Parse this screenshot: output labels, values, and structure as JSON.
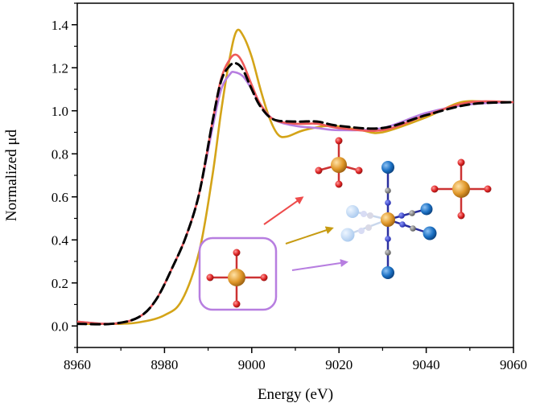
{
  "chart_data": {
    "type": "line",
    "title": "",
    "xlabel": "Energy (eV)",
    "ylabel": "Normalized μd",
    "xlim": [
      8960,
      9060
    ],
    "ylim": [
      -0.1,
      1.5
    ],
    "xticks": [
      8960,
      8980,
      9000,
      9020,
      9040,
      9060
    ],
    "yticks": [
      0.0,
      0.2,
      0.4,
      0.6,
      0.8,
      1.0,
      1.2,
      1.4
    ],
    "xtick_labels": [
      "8960",
      "8980",
      "9000",
      "9020",
      "9040",
      "9060"
    ],
    "ytick_labels": [
      "0.0",
      "0.2",
      "0.4",
      "0.6",
      "0.8",
      "1.0",
      "1.2",
      "1.4"
    ],
    "series": [
      {
        "name": "gold-spectrum",
        "color": "#d4a418",
        "dash": false,
        "x": [
          8960,
          8970,
          8975,
          8980,
          8984,
          8988,
          8991,
          8993,
          8995,
          8996.5,
          8998,
          9000,
          9002,
          9004,
          9006,
          9008,
          9012,
          9018,
          9025,
          9030,
          9040,
          9048,
          9055,
          9060
        ],
        "y": [
          0.01,
          0.01,
          0.02,
          0.05,
          0.12,
          0.35,
          0.7,
          1.0,
          1.25,
          1.37,
          1.35,
          1.25,
          1.1,
          0.97,
          0.89,
          0.88,
          0.91,
          0.93,
          0.91,
          0.9,
          0.97,
          1.04,
          1.04,
          1.04
        ]
      },
      {
        "name": "purple-spectrum",
        "color": "#b77ee0",
        "dash": false,
        "x": [
          8960,
          8968,
          8974,
          8978,
          8982,
          8985,
          8988,
          8991,
          8993,
          8995,
          8996,
          8998,
          9000,
          9002,
          9005,
          9010,
          9015,
          9020,
          9030,
          9040,
          9050,
          9060
        ],
        "y": [
          0.02,
          0.01,
          0.04,
          0.12,
          0.28,
          0.42,
          0.62,
          0.92,
          1.1,
          1.17,
          1.18,
          1.16,
          1.1,
          1.03,
          0.96,
          0.93,
          0.92,
          0.91,
          0.92,
          0.99,
          1.03,
          1.04
        ]
      },
      {
        "name": "red-spectrum",
        "color": "#ee5a5a",
        "dash": false,
        "x": [
          8960,
          8968,
          8974,
          8978,
          8982,
          8985,
          8988,
          8991,
          8993,
          8995,
          8996.5,
          8998,
          9000,
          9002,
          9005,
          9010,
          9015,
          9020,
          9030,
          9040,
          9050,
          9060
        ],
        "y": [
          0.02,
          0.01,
          0.04,
          0.12,
          0.28,
          0.42,
          0.62,
          0.95,
          1.15,
          1.24,
          1.26,
          1.22,
          1.12,
          1.03,
          0.96,
          0.94,
          0.94,
          0.92,
          0.91,
          0.98,
          1.04,
          1.04
        ]
      },
      {
        "name": "black-dashed-spectrum",
        "color": "#000000",
        "dash": true,
        "x": [
          8960,
          8968,
          8974,
          8978,
          8982,
          8985,
          8988,
          8991,
          8993,
          8995,
          8996.5,
          8998,
          9000,
          9002,
          9005,
          9010,
          9015,
          9020,
          9030,
          9040,
          9050,
          9060
        ],
        "y": [
          0.01,
          0.01,
          0.04,
          0.12,
          0.28,
          0.42,
          0.62,
          0.95,
          1.14,
          1.21,
          1.22,
          1.19,
          1.1,
          1.02,
          0.96,
          0.95,
          0.95,
          0.93,
          0.92,
          0.98,
          1.03,
          1.04
        ]
      }
    ],
    "annotations": {
      "arrows": [
        {
          "name": "red-arrow",
          "color": "#ee4b4b"
        },
        {
          "name": "gold-arrow",
          "color": "#c79b12"
        },
        {
          "name": "purple-arrow",
          "color": "#b77ee0"
        }
      ],
      "inset_box_color": "#b77ee0",
      "atom_colors": {
        "metal": "#e0982a",
        "oxygen": "#dd2222",
        "bond_red": "#cc3333",
        "carbon": "#777777",
        "nitrogen": "#2233cc",
        "blue_ball": "#1a6fc2",
        "faded_ball": "#b8d4f2"
      }
    }
  }
}
